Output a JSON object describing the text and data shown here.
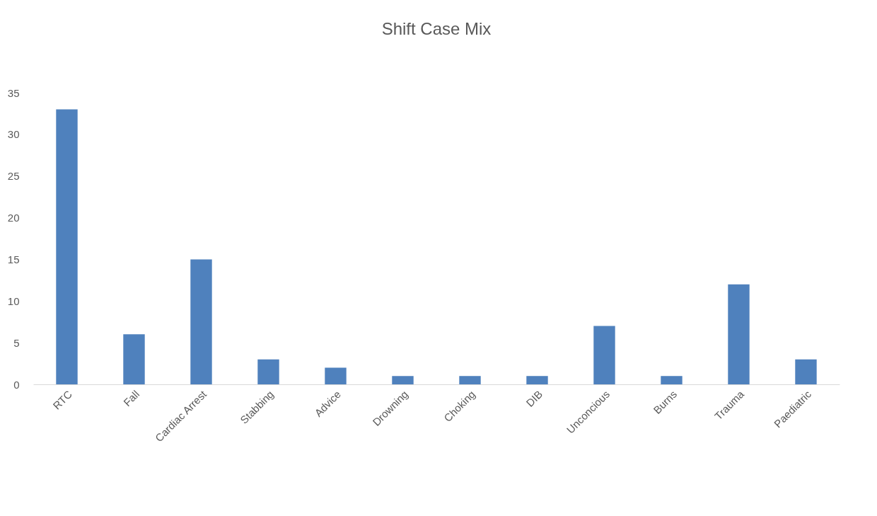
{
  "chart_data": {
    "type": "bar",
    "title": "Shift Case Mix",
    "categories": [
      "RTC",
      "Fall",
      "Cardiac Arrest",
      "Stabbing",
      "Advice",
      "Drowning",
      "Choking",
      "DIB",
      "Unconcious",
      "Burns",
      "Trauma",
      "Paediatric"
    ],
    "values": [
      33,
      6,
      15,
      3,
      2,
      1,
      1,
      1,
      7,
      1,
      12,
      3
    ],
    "color": "#4f81bd",
    "ylim": [
      0,
      35
    ],
    "yticks": [
      0,
      5,
      10,
      15,
      20,
      25,
      30,
      35
    ],
    "grid": false
  }
}
